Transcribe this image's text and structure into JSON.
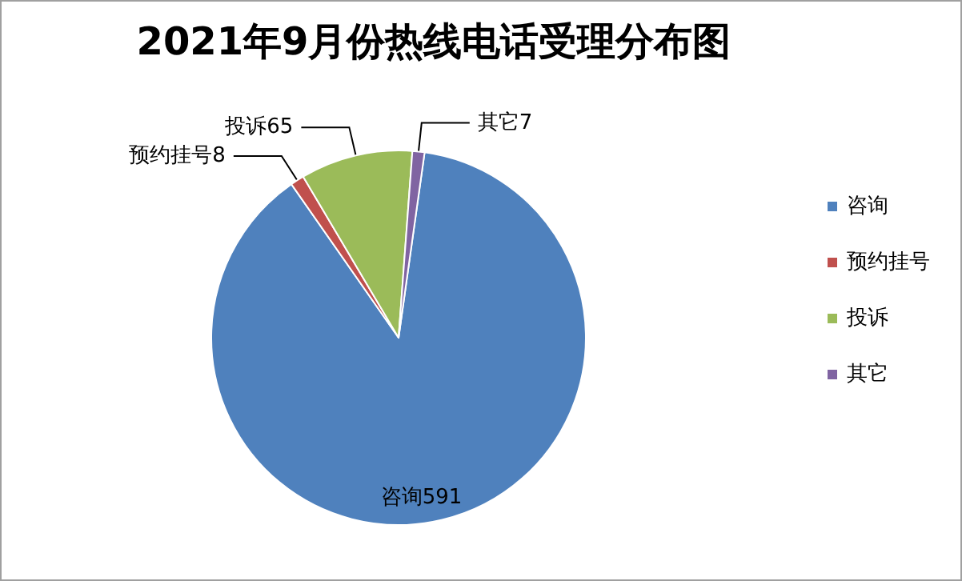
{
  "chart_data": {
    "type": "pie",
    "title": "2021年9月份热线电话受理分布图",
    "categories": [
      "咨询",
      "预约挂号",
      "投诉",
      "其它"
    ],
    "values": [
      591,
      8,
      65,
      7
    ],
    "colors": [
      "#4f81bd",
      "#c0504d",
      "#9bbb59",
      "#8064a2"
    ],
    "data_labels": true,
    "legend": "right"
  }
}
